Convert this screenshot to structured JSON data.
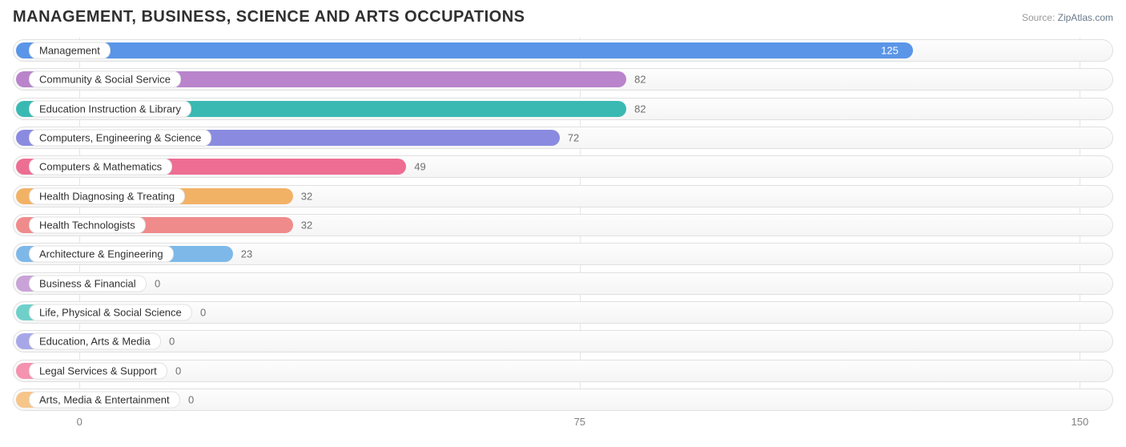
{
  "title": "MANAGEMENT, BUSINESS, SCIENCE AND ARTS OCCUPATIONS",
  "source": {
    "label": "Source:",
    "name": "ZipAtlas.com"
  },
  "chart": {
    "type": "bar-horizontal",
    "xlim": [
      -10,
      155
    ],
    "ticks": [
      0,
      75,
      150
    ],
    "track_border": "#e0e0e0",
    "grid_color": "#e5e5e5",
    "background": "#ffffff",
    "label_fontsize": 13,
    "title_fontsize": 20,
    "bar_inner_height": 20,
    "bar_radius": 10,
    "series": [
      {
        "label": "Management",
        "value": 125,
        "color": "#5a95e8"
      },
      {
        "label": "Community & Social Service",
        "value": 82,
        "color": "#b984cb"
      },
      {
        "label": "Education Instruction & Library",
        "value": 82,
        "color": "#3ab9b3"
      },
      {
        "label": "Computers, Engineering & Science",
        "value": 72,
        "color": "#8a8be0"
      },
      {
        "label": "Computers & Mathematics",
        "value": 49,
        "color": "#ed6e92"
      },
      {
        "label": "Health Diagnosing & Treating",
        "value": 32,
        "color": "#f2b266"
      },
      {
        "label": "Health Technologists",
        "value": 32,
        "color": "#ef8b8b"
      },
      {
        "label": "Architecture & Engineering",
        "value": 23,
        "color": "#7db8e8"
      },
      {
        "label": "Business & Financial",
        "value": 0,
        "color": "#c9a3d8"
      },
      {
        "label": "Life, Physical & Social Science",
        "value": 0,
        "color": "#6fd0ca"
      },
      {
        "label": "Education, Arts & Media",
        "value": 0,
        "color": "#a7a7e8"
      },
      {
        "label": "Legal Services & Support",
        "value": 0,
        "color": "#f492af"
      },
      {
        "label": "Arts, Media & Entertainment",
        "value": 0,
        "color": "#f6c58a"
      }
    ]
  }
}
